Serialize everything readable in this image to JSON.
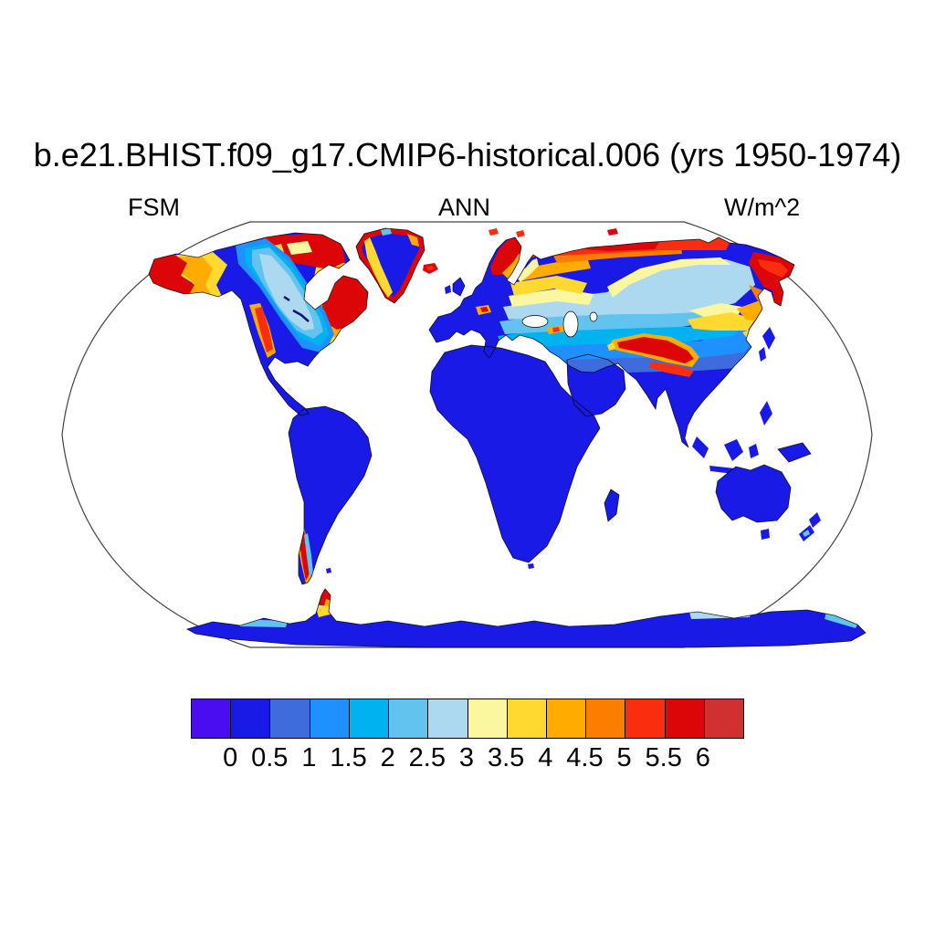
{
  "header": {
    "title": "b.e21.BHIST.f09_g17.CMIP6-historical.006 (yrs 1950-1974)"
  },
  "plot_labels": {
    "left": "FSM",
    "center": "ANN",
    "right": "W/m^2"
  },
  "chart_data": {
    "type": "heatmap",
    "subtype": "filled-contour global map",
    "projection": "Robinson",
    "title": "b.e21.BHIST.f09_g17.CMIP6-historical.006 (yrs 1950-1974)",
    "variable": "FSM",
    "season": "ANN",
    "units": "W/m^2",
    "ocean": "white (no data)",
    "colorbar": {
      "orientation": "horizontal",
      "tick_labels": [
        "0",
        "0.5",
        "1",
        "1.5",
        "2",
        "2.5",
        "3",
        "3.5",
        "4",
        "4.5",
        "5",
        "5.5",
        "6"
      ],
      "colors": [
        "#4A0CF0",
        "#1A1AE6",
        "#3E6CDC",
        "#1E90FF",
        "#00B2F0",
        "#62C4EE",
        "#ADD9F0",
        "#FAF7A0",
        "#FFD930",
        "#FFAB00",
        "#FC7E00",
        "#FA2E0E",
        "#DC0507",
        "#D13031"
      ]
    },
    "pattern_notes": [
      "Most low/mid-latitude land near 0-0.5 W/m^2 (deep blue): S US, Mexico, South America, Africa, S Europe, S Asia, Australia",
      "High values 5-6+ (red): Alaska, NE Canada/Quebec-Labrador, Greenland coastal rim, Iceland, Norway, Arctic Siberian coast, NE Siberia/Kamchatka, Tibetan Plateau, S Andes, Antarctic Peninsula tip",
      "Intermediate 1-3 (cyan/pale blue) band across central Canada and central Siberia; 3-4.5 (cream/yellow/orange) transition bands between",
      "Greenland interior 0-0.5 (blue) with red/orange/yellow coastal fringe",
      "Antarctica mostly 0-0.5 (blue) with 1.5-3 (cyan/pale) coastal patches"
    ]
  }
}
